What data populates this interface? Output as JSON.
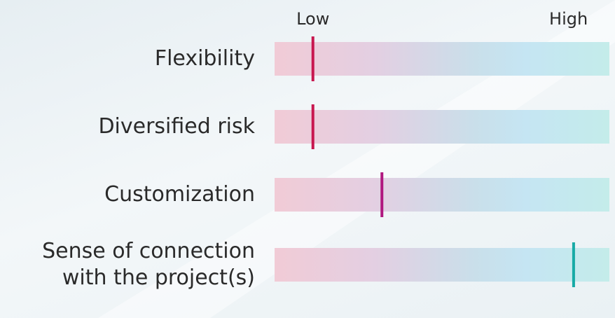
{
  "chart_data": {
    "type": "marker",
    "categories": [
      "Flexibility",
      "Diversified risk",
      "Customization",
      "Sense of connection\nwith the project(s)"
    ],
    "values": [
      0,
      0,
      27,
      102
    ],
    "colors": [
      "#c8174f",
      "#c8174f",
      "#b0187f",
      "#17aaa6"
    ],
    "xlim": [
      -15,
      116
    ],
    "xticks": [
      {
        "value": 0,
        "label": "Low"
      },
      {
        "value": 100,
        "label": "High"
      }
    ],
    "grid": false
  }
}
